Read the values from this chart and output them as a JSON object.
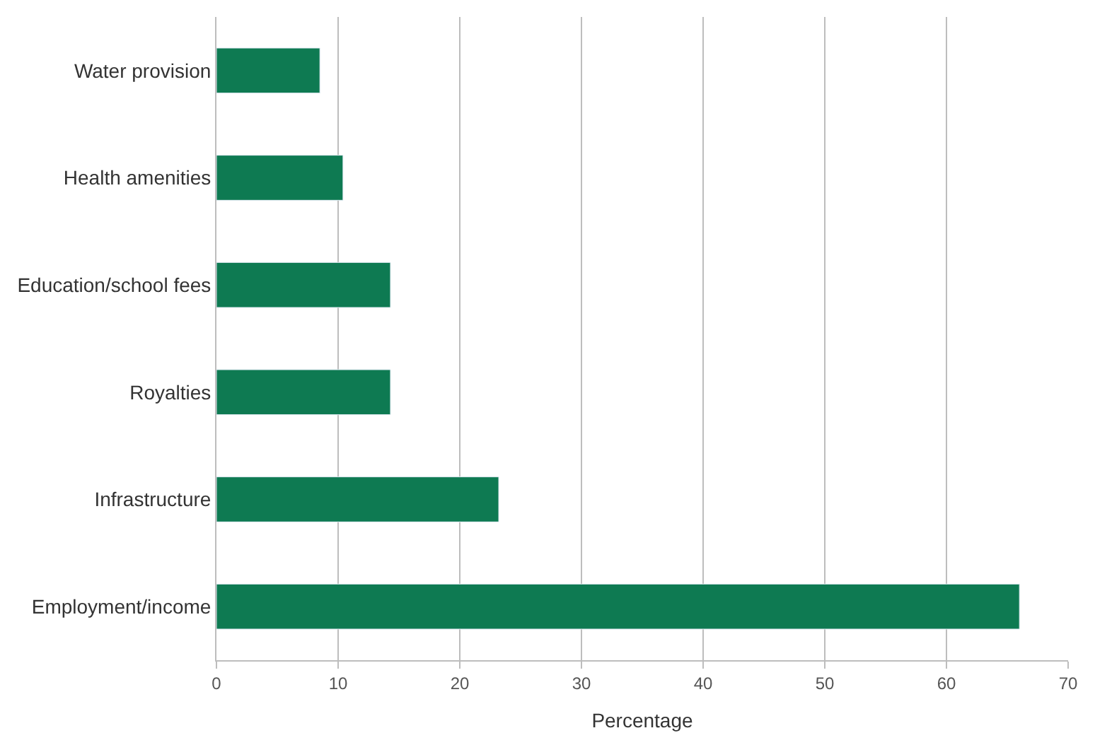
{
  "chart_data": {
    "type": "bar",
    "orientation": "horizontal",
    "xlabel": "Percentage",
    "categories": [
      "Water provision",
      "Health amenities",
      "Education/school fees",
      "Royalties",
      "Infrastructure",
      "Employment/income"
    ],
    "values": [
      8.5,
      10.4,
      14.3,
      14.3,
      23.2,
      66.0
    ],
    "color": "#0e7a52",
    "xlim": [
      0,
      70
    ],
    "xticks": [
      0,
      10,
      20,
      30,
      40,
      50,
      60,
      70
    ],
    "grid": "x"
  }
}
